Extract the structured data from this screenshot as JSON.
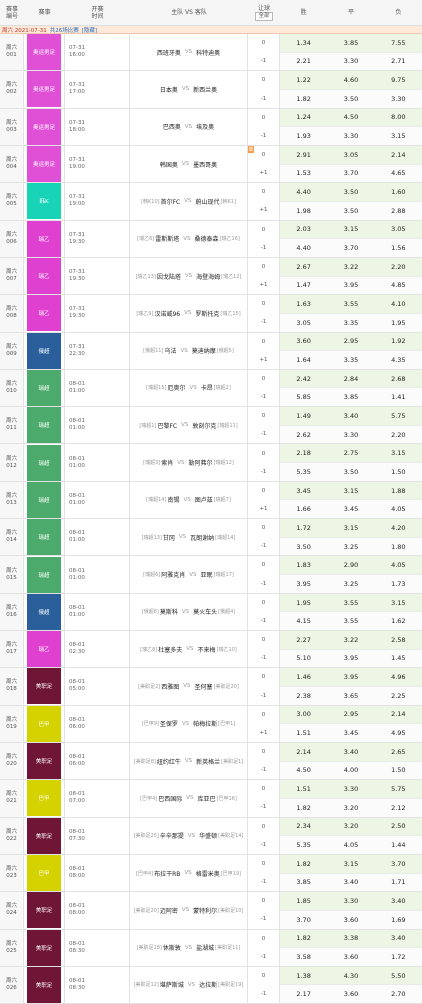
{
  "header": {
    "no_label_1": "赛事",
    "no_label_2": "编号",
    "event_label": "赛事",
    "time_label_1": "开赛",
    "time_label_2": "时间",
    "teams_label": "主队 VS 客队",
    "hc_label": "让球",
    "hc_select": "全部",
    "win_label": "胜",
    "draw_label": "平",
    "lose_label": "负"
  },
  "date_bar": {
    "date": "周六 2021-07-31",
    "count": "共26场比赛",
    "link": "[隐藏]"
  },
  "colors": {
    "olympic": "#e050d6",
    "kleague": "#19d3b7",
    "allsvenskan2": "#e040d0",
    "jleague": "#2a5f9c",
    "allsvenskan1": "#4caa6c",
    "mls": "#6f1535",
    "serieb": "#d4d300",
    "odds_bg": "#edf5e4"
  },
  "matches": [
    {
      "no1": "周六",
      "no2": "001",
      "event": "奥运男足",
      "color": "#e050d6",
      "date": "07-31",
      "time": "16:00",
      "hr": "",
      "home": "西班牙奥",
      "away": "科特迪奥",
      "ar": "",
      "hc1": "0",
      "hc2": "-1",
      "w1": "1.34",
      "d1": "3.85",
      "l1": "7.55",
      "w2": "2.21",
      "d2": "3.30",
      "l2": "2.71",
      "dan": ""
    },
    {
      "no1": "周六",
      "no2": "002",
      "event": "奥运男足",
      "color": "#e050d6",
      "date": "07-31",
      "time": "17:00",
      "hr": "",
      "home": "日本奥",
      "away": "新西兰奥",
      "ar": "",
      "hc1": "0",
      "hc2": "-1",
      "w1": "1.22",
      "d1": "4.60",
      "l1": "9.75",
      "w2": "1.82",
      "d2": "3.50",
      "l2": "3.30",
      "dan": ""
    },
    {
      "no1": "周六",
      "no2": "003",
      "event": "奥运男足",
      "color": "#e050d6",
      "date": "07-31",
      "time": "18:00",
      "hr": "",
      "home": "巴西奥",
      "away": "埃及奥",
      "ar": "",
      "hc1": "0",
      "hc2": "-1",
      "w1": "1.24",
      "d1": "4.50",
      "l1": "8.00",
      "w2": "1.93",
      "d2": "3.30",
      "l2": "3.15",
      "dan": ""
    },
    {
      "no1": "周六",
      "no2": "004",
      "event": "奥运男足",
      "color": "#e050d6",
      "date": "07-31",
      "time": "19:00",
      "hr": "",
      "home": "韩国奥",
      "away": "墨西哥奥",
      "ar": "",
      "hc1": "0",
      "hc2": "+1",
      "w1": "2.91",
      "d1": "3.05",
      "l1": "2.14",
      "w2": "1.53",
      "d2": "3.70",
      "l2": "4.65",
      "dan": "单"
    },
    {
      "no1": "周六",
      "no2": "005",
      "event": "韩K",
      "color": "#19d3b7",
      "date": "07-31",
      "time": "19:00",
      "hr": "[韩K10]",
      "home": "首尔FC",
      "away": "蔚山现代",
      "ar": "[韩K1]",
      "hc1": "0",
      "hc2": "+1",
      "w1": "4.40",
      "d1": "3.50",
      "l1": "1.60",
      "w2": "1.98",
      "d2": "3.50",
      "l2": "2.88",
      "dan": ""
    },
    {
      "no1": "周六",
      "no2": "006",
      "event": "瑞乙",
      "color": "#e040d0",
      "date": "07-31",
      "time": "19:30",
      "hr": "[瑞乙6]",
      "home": "雷斯斯塔",
      "away": "桑德泰森",
      "ar": "[瑞乙16]",
      "hc1": "0",
      "hc2": "-1",
      "w1": "2.03",
      "d1": "3.15",
      "l1": "3.05",
      "w2": "4.40",
      "d2": "3.70",
      "l2": "1.56",
      "dan": ""
    },
    {
      "no1": "周六",
      "no2": "007",
      "event": "瑞乙",
      "color": "#e040d0",
      "date": "07-31",
      "time": "19:30",
      "hr": "[瑞乙13]",
      "home": "因戈陆塔",
      "away": "海登海姆",
      "ar": "[瑞乙12]",
      "hc1": "0",
      "hc2": "+1",
      "w1": "2.67",
      "d1": "3.22",
      "l1": "2.20",
      "w2": "1.47",
      "d2": "3.95",
      "l2": "4.85",
      "dan": ""
    },
    {
      "no1": "周六",
      "no2": "008",
      "event": "瑞乙",
      "color": "#e040d0",
      "date": "07-31",
      "time": "19:30",
      "hr": "[瑞乙9]",
      "home": "汉诺威96",
      "away": "罗斯托克",
      "ar": "[瑞乙15]",
      "hc1": "0",
      "hc2": "-1",
      "w1": "1.63",
      "d1": "3.55",
      "l1": "4.10",
      "w2": "3.05",
      "d2": "3.35",
      "l2": "1.95",
      "dan": ""
    },
    {
      "no1": "周六",
      "no2": "009",
      "event": "俄超",
      "color": "#2a5f9c",
      "date": "07-31",
      "time": "22:30",
      "hr": "[俄超11]",
      "home": "乌法",
      "away": "莫迪纳摩",
      "ar": "[俄超5]",
      "hc1": "0",
      "hc2": "+1",
      "w1": "3.60",
      "d1": "2.95",
      "l1": "1.92",
      "w2": "1.64",
      "d2": "3.35",
      "l2": "4.35",
      "dan": ""
    },
    {
      "no1": "周六",
      "no2": "010",
      "event": "瑞超",
      "color": "#4caa6c",
      "date": "08-01",
      "time": "01:00",
      "hr": "[瑞超15]",
      "home": "厄奥尔",
      "away": "卡昂",
      "ar": "[瑞超2]",
      "hc1": "0",
      "hc2": "-1",
      "w1": "2.42",
      "d1": "2.84",
      "l1": "2.68",
      "w2": "5.85",
      "d2": "3.85",
      "l2": "1.41",
      "dan": ""
    },
    {
      "no1": "周六",
      "no2": "011",
      "event": "瑞超",
      "color": "#4caa6c",
      "date": "08-01",
      "time": "01:00",
      "hr": "[瑞超1]",
      "home": "巴黎FC",
      "away": "敦刻尔克",
      "ar": "[瑞超11]",
      "hc1": "0",
      "hc2": "-1",
      "w1": "1.49",
      "d1": "3.40",
      "l1": "5.75",
      "w2": "2.62",
      "d2": "3.30",
      "l2": "2.20",
      "dan": ""
    },
    {
      "no1": "周六",
      "no2": "012",
      "event": "瑞超",
      "color": "#4caa6c",
      "date": "08-01",
      "time": "01:00",
      "hr": "[瑞超3]",
      "home": "索肖",
      "away": "勒阿弗尔",
      "ar": "[瑞超12]",
      "hc1": "0",
      "hc2": "-1",
      "w1": "2.18",
      "d1": "2.75",
      "l1": "3.15",
      "w2": "5.35",
      "d2": "3.50",
      "l2": "1.50",
      "dan": ""
    },
    {
      "no1": "周六",
      "no2": "013",
      "event": "瑞超",
      "color": "#4caa6c",
      "date": "08-01",
      "time": "01:00",
      "hr": "[瑞超14]",
      "home": "南锡",
      "away": "图卢兹",
      "ar": "[瑞超7]",
      "hc1": "0",
      "hc2": "+1",
      "w1": "3.45",
      "d1": "3.15",
      "l1": "1.88",
      "w2": "1.66",
      "d2": "3.45",
      "l2": "4.05",
      "dan": ""
    },
    {
      "no1": "周六",
      "no2": "014",
      "event": "瑞超",
      "color": "#4caa6c",
      "date": "08-01",
      "time": "01:00",
      "hr": "[瑞超13]",
      "home": "甘冈",
      "away": "瓦朗谢纳",
      "ar": "[瑞超14]",
      "hc1": "0",
      "hc2": "-1",
      "w1": "1.72",
      "d1": "3.15",
      "l1": "4.20",
      "w2": "3.50",
      "d2": "3.25",
      "l2": "1.80",
      "dan": ""
    },
    {
      "no1": "周六",
      "no2": "015",
      "event": "瑞超",
      "color": "#4caa6c",
      "date": "08-01",
      "time": "01:00",
      "hr": "[瑞超6]",
      "home": "阿雅克肖",
      "away": "亚眠",
      "ar": "[瑞超17]",
      "hc1": "0",
      "hc2": "-1",
      "w1": "1.83",
      "d1": "2.90",
      "l1": "4.05",
      "w2": "3.95",
      "d2": "3.25",
      "l2": "1.73",
      "dan": ""
    },
    {
      "no1": "周六",
      "no2": "016",
      "event": "俄超",
      "color": "#2a5f9c",
      "date": "08-01",
      "time": "01:00",
      "hr": "[俄超8]",
      "home": "莫斯科",
      "away": "莫火车头",
      "ar": "[俄超4]",
      "hc1": "0",
      "hc2": "-1",
      "w1": "1.95",
      "d1": "3.55",
      "l1": "3.15",
      "w2": "4.15",
      "d2": "3.55",
      "l2": "1.62",
      "dan": ""
    },
    {
      "no1": "周六",
      "no2": "017",
      "event": "瑞乙",
      "color": "#e040d0",
      "date": "08-01",
      "time": "02:30",
      "hr": "[瑞乙8]",
      "home": "杜塞多夫",
      "away": "不来梅",
      "ar": "[瑞乙10]",
      "hc1": "0",
      "hc2": "-1",
      "w1": "2.27",
      "d1": "3.22",
      "l1": "2.58",
      "w2": "5.10",
      "d2": "3.95",
      "l2": "1.45",
      "dan": ""
    },
    {
      "no1": "周六",
      "no2": "018",
      "event": "美职足",
      "color": "#6f1535",
      "date": "08-01",
      "time": "05:00",
      "hr": "[美职足2]",
      "home": "西雅图",
      "away": "圣何塞",
      "ar": "[美职足20]",
      "hc1": "0",
      "hc2": "-1",
      "w1": "1.46",
      "d1": "3.95",
      "l1": "4.96",
      "w2": "2.38",
      "d2": "3.65",
      "l2": "2.25",
      "dan": ""
    },
    {
      "no1": "周六",
      "no2": "019",
      "event": "巴甲",
      "color": "#d4d300",
      "date": "08-01",
      "time": "06:00",
      "hr": "[巴甲9]",
      "home": "圣保罗",
      "away": "帕梅拉斯",
      "ar": "[巴甲1]",
      "hc1": "0",
      "hc2": "+1",
      "w1": "3.00",
      "d1": "2.95",
      "l1": "2.14",
      "w2": "1.51",
      "d2": "3.45",
      "l2": "4.95",
      "dan": ""
    },
    {
      "no1": "周六",
      "no2": "020",
      "event": "美职足",
      "color": "#6f1535",
      "date": "08-01",
      "time": "06:00",
      "hr": "[美职足8]",
      "home": "纽约红牛",
      "away": "新英格兰",
      "ar": "[美职足1]",
      "hc1": "0",
      "hc2": "-1",
      "w1": "2.14",
      "d1": "3.40",
      "l1": "2.65",
      "w2": "4.50",
      "d2": "4.00",
      "l2": "1.50",
      "dan": ""
    },
    {
      "no1": "周六",
      "no2": "021",
      "event": "巴甲",
      "color": "#d4d300",
      "date": "08-01",
      "time": "07:00",
      "hr": "[巴甲4]",
      "home": "巴西国际",
      "away": "库亚巴",
      "ar": "[巴甲16]",
      "hc1": "0",
      "hc2": "-1",
      "w1": "1.51",
      "d1": "3.30",
      "l1": "5.75",
      "w2": "1.82",
      "d2": "3.20",
      "l2": "2.12",
      "dan": ""
    },
    {
      "no1": "周六",
      "no2": "022",
      "event": "美职足",
      "color": "#6f1535",
      "date": "08-01",
      "time": "07:30",
      "hr": "[美职足25]",
      "home": "辛辛那提",
      "away": "华盛顿",
      "ar": "[美职足14]",
      "hc1": "0",
      "hc2": "-1",
      "w1": "2.34",
      "d1": "3.20",
      "l1": "2.50",
      "w2": "5.35",
      "d2": "4.05",
      "l2": "1.44",
      "dan": ""
    },
    {
      "no1": "周六",
      "no2": "023",
      "event": "巴甲",
      "color": "#d4d300",
      "date": "08-01",
      "time": "08:00",
      "hr": "[巴甲4]",
      "home": "布拉干RB",
      "away": "格雷米奥",
      "ar": "[巴甲19]",
      "hc1": "0",
      "hc2": "-1",
      "w1": "1.82",
      "d1": "3.15",
      "l1": "3.70",
      "w2": "3.85",
      "d2": "3.40",
      "l2": "1.71",
      "dan": ""
    },
    {
      "no1": "周六",
      "no2": "024",
      "event": "美职足",
      "color": "#6f1535",
      "date": "08-01",
      "time": "08:00",
      "hr": "[美职足20]",
      "home": "迈阿密",
      "away": "蒙特利尔",
      "ar": "[美职足10]",
      "hc1": "0",
      "hc2": "-1",
      "w1": "1.85",
      "d1": "3.30",
      "l1": "3.40",
      "w2": "3.70",
      "d2": "3.60",
      "l2": "1.69",
      "dan": ""
    },
    {
      "no1": "周六",
      "no2": "025",
      "event": "美职足",
      "color": "#6f1535",
      "date": "08-01",
      "time": "08:30",
      "hr": "[美职足18]",
      "home": "休斯敦",
      "away": "盐湖城",
      "ar": "[美职足11]",
      "hc1": "0",
      "hc2": "-1",
      "w1": "1.82",
      "d1": "3.38",
      "l1": "3.40",
      "w2": "3.58",
      "d2": "3.60",
      "l2": "1.72",
      "dan": ""
    },
    {
      "no1": "周六",
      "no2": "026",
      "event": "美职足",
      "color": "#6f1535",
      "date": "08-01",
      "time": "08:30",
      "hr": "[美职足12]",
      "home": "堪萨斯城",
      "away": "达拉斯",
      "ar": "[美职足19]",
      "hc1": "0",
      "hc2": "-1",
      "w1": "1.38",
      "d1": "4.30",
      "l1": "5.50",
      "w2": "2.17",
      "d2": "3.60",
      "l2": "2.70",
      "dan": ""
    }
  ]
}
